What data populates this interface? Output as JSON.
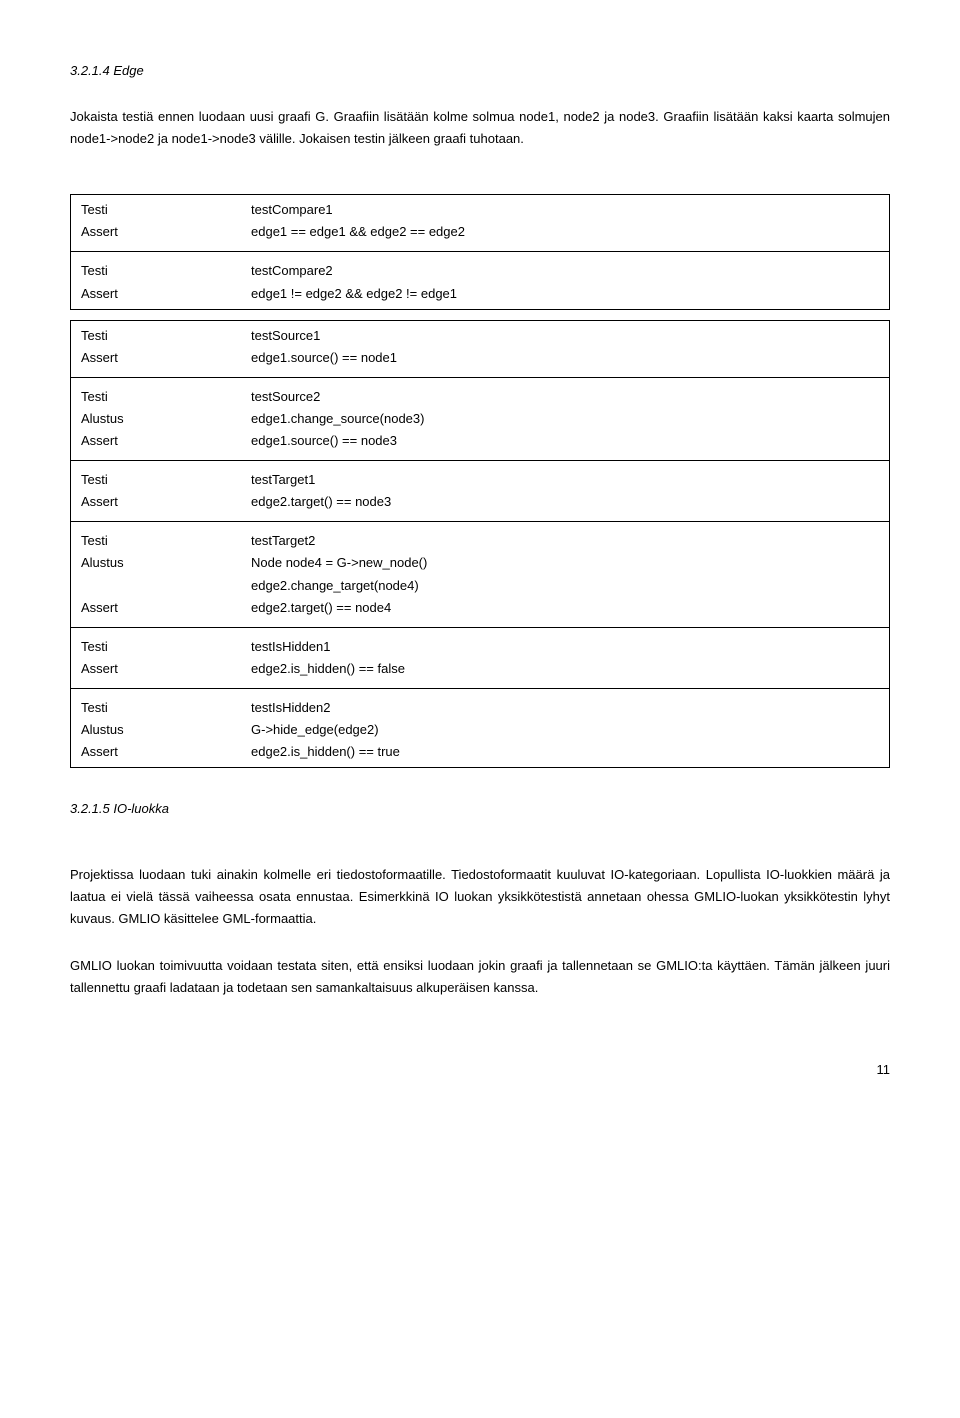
{
  "heading1": "3.2.1.4 Edge",
  "intro": "Jokaista testiä ennen luodaan uusi graafi G. Graafiin lisätään kolme solmua node1, node2 ja node3. Graafiin lisätään kaksi kaarta solmujen node1->node2 ja node1->node3 välille. Jokaisen testin jälkeen graafi tuhotaan.",
  "block1": {
    "groups": [
      [
        {
          "label": "Testi",
          "value": "testCompare1"
        },
        {
          "label": "Assert",
          "value": "edge1 == edge1 && edge2 == edge2"
        }
      ],
      [
        {
          "label": "Testi",
          "value": "testCompare2"
        },
        {
          "label": "Assert",
          "value": "edge1 != edge2 && edge2 != edge1"
        }
      ]
    ]
  },
  "block2": {
    "groups": [
      [
        {
          "label": "Testi",
          "value": "testSource1"
        },
        {
          "label": "Assert",
          "value": "edge1.source() == node1"
        }
      ],
      [
        {
          "label": "Testi",
          "value": "testSource2"
        },
        {
          "label": "Alustus",
          "value": "edge1.change_source(node3)"
        },
        {
          "label": "Assert",
          "value": "edge1.source() == node3"
        }
      ],
      [
        {
          "label": "Testi",
          "value": "testTarget1"
        },
        {
          "label": "Assert",
          "value": "edge2.target() == node3"
        }
      ],
      [
        {
          "label": "Testi",
          "value": "testTarget2"
        },
        {
          "label": "Alustus",
          "value": "Node node4 = G->new_node()"
        },
        {
          "label": "",
          "value": "edge2.change_target(node4)"
        },
        {
          "label": "Assert",
          "value": "edge2.target() == node4"
        }
      ],
      [
        {
          "label": "Testi",
          "value": "testIsHidden1"
        },
        {
          "label": "Assert",
          "value": "edge2.is_hidden() == false"
        }
      ],
      [
        {
          "label": "Testi",
          "value": "testIsHidden2"
        },
        {
          "label": "Alustus",
          "value": "G->hide_edge(edge2)"
        },
        {
          "label": "Assert",
          "value": "edge2.is_hidden() == true"
        }
      ]
    ]
  },
  "heading2": "3.2.1.5 IO-luokka",
  "para1": "Projektissa luodaan tuki ainakin kolmelle eri tiedostoformaatille. Tiedostoformaatit kuuluvat IO-kategoriaan. Lopullista IO-luokkien määrä ja laatua ei vielä tässä vaiheessa osata ennustaa. Esimerkkinä IO luokan yksikkötestistä annetaan ohessa GMLIO-luokan yksikkötestin lyhyt kuvaus. GMLIO käsittelee GML-formaattia.",
  "para2": "GMLIO luokan toimivuutta voidaan testata siten, että ensiksi luodaan jokin graafi ja tallennetaan se GMLIO:ta käyttäen. Tämän jälkeen juuri tallennettu graafi ladataan ja todetaan sen samankaltaisuus alkuperäisen kanssa.",
  "pageNumber": "11"
}
